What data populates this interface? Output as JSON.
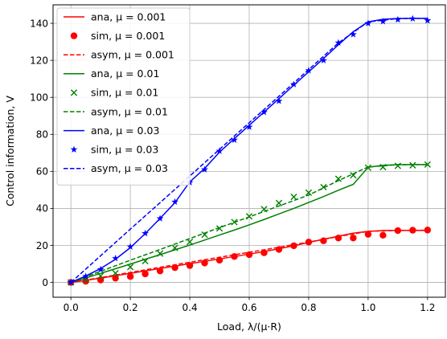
{
  "chart_data": {
    "type": "line",
    "xlabel": "Load, λ/(μ·R)",
    "ylabel": "Control information, V",
    "xlim": [
      -0.06,
      1.26
    ],
    "ylim": [
      -8,
      150
    ],
    "xticks": [
      "0.0",
      "0.2",
      "0.4",
      "0.6",
      "0.8",
      "1.0",
      "1.2"
    ],
    "yticks": [
      "0",
      "20",
      "40",
      "60",
      "80",
      "100",
      "120",
      "140"
    ],
    "grid": true,
    "legend_position": "upper-left",
    "series": [
      {
        "name": "ana, μ = 0.001",
        "style": "line",
        "color": "#ff0000",
        "x": [
          0,
          0.05,
          0.1,
          0.15,
          0.2,
          0.25,
          0.3,
          0.35,
          0.4,
          0.45,
          0.5,
          0.55,
          0.6,
          0.65,
          0.7,
          0.75,
          0.8,
          0.85,
          0.9,
          0.95,
          1.0,
          1.05,
          1.1,
          1.15,
          1.2
        ],
        "y": [
          0,
          1.1,
          2.3,
          3.6,
          4.9,
          6.2,
          7.5,
          8.8,
          10.1,
          11.4,
          12.7,
          14.0,
          15.3,
          16.7,
          18.2,
          19.8,
          21.6,
          23.3,
          25.0,
          26.6,
          27.6,
          28.0,
          28.1,
          28.1,
          28.1
        ]
      },
      {
        "name": "sim, μ = 0.001",
        "style": "circle",
        "color": "#ff0000",
        "x": [
          0,
          0.05,
          0.1,
          0.15,
          0.2,
          0.25,
          0.3,
          0.35,
          0.4,
          0.45,
          0.5,
          0.55,
          0.6,
          0.65,
          0.7,
          0.75,
          0.8,
          0.85,
          0.9,
          0.95,
          1.0,
          1.05,
          1.1,
          1.15,
          1.2
        ],
        "y": [
          0,
          0.6,
          1.3,
          2.3,
          3.2,
          4.6,
          6.2,
          8.0,
          9.1,
          10.5,
          12.0,
          14.0,
          15.0,
          16.0,
          17.8,
          19.8,
          21.8,
          22.5,
          24.0,
          24.0,
          26.0,
          25.5,
          28.0,
          28.2,
          28.3
        ]
      },
      {
        "name": "asym, μ = 0.001",
        "style": "dashed",
        "color": "#ff0000",
        "x": [
          0,
          0.1,
          0.2,
          0.3,
          0.4,
          0.5,
          0.6,
          0.7,
          0.8,
          0.9,
          1.0,
          1.1,
          1.2
        ],
        "y": [
          0,
          2.6,
          5.4,
          8.2,
          10.9,
          13.6,
          16.3,
          19.0,
          21.8,
          24.8,
          27.6,
          28.1,
          28.2
        ]
      },
      {
        "name": "ana, μ = 0.01",
        "style": "line",
        "color": "#008000",
        "x": [
          0,
          0.05,
          0.1,
          0.15,
          0.2,
          0.25,
          0.3,
          0.35,
          0.4,
          0.45,
          0.5,
          0.55,
          0.6,
          0.65,
          0.7,
          0.75,
          0.8,
          0.85,
          0.9,
          0.95,
          1.0,
          1.05,
          1.1,
          1.15,
          1.2
        ],
        "y": [
          0,
          2.4,
          4.9,
          7.4,
          9.9,
          12.5,
          15.0,
          17.6,
          20.2,
          22.9,
          25.6,
          28.3,
          31.1,
          34.0,
          37.0,
          40.0,
          43.2,
          46.4,
          49.8,
          53.0,
          62.2,
          63.3,
          63.6,
          63.7,
          63.7
        ]
      },
      {
        "name": "sim, μ = 0.01",
        "style": "x",
        "color": "#008000",
        "x": [
          0,
          0.05,
          0.1,
          0.15,
          0.2,
          0.25,
          0.3,
          0.35,
          0.4,
          0.45,
          0.5,
          0.55,
          0.6,
          0.65,
          0.7,
          0.75,
          0.8,
          0.85,
          0.9,
          0.95,
          1.0,
          1.05,
          1.1,
          1.15,
          1.2
        ],
        "y": [
          0,
          1.5,
          3.5,
          5.0,
          8.3,
          11.5,
          15.6,
          18.7,
          21.9,
          25.8,
          29.2,
          32.6,
          35.7,
          39.6,
          42.9,
          46.2,
          48.5,
          51.5,
          56.0,
          57.9,
          62.0,
          62.3,
          63.0,
          63.3,
          63.7
        ]
      },
      {
        "name": "asym, μ = 0.01",
        "style": "dashed",
        "color": "#008000",
        "x": [
          0,
          0.1,
          0.2,
          0.3,
          0.4,
          0.5,
          0.6,
          0.7,
          0.8,
          0.9,
          1.0,
          1.1,
          1.2
        ],
        "y": [
          0,
          6.0,
          12.0,
          17.8,
          23.7,
          29.6,
          35.4,
          41.3,
          47.2,
          55.0,
          62.4,
          63.6,
          63.7
        ]
      },
      {
        "name": "ana, μ = 0.03",
        "style": "line",
        "color": "#0000ff",
        "x": [
          0,
          0.05,
          0.1,
          0.15,
          0.2,
          0.25,
          0.3,
          0.35,
          0.4,
          0.45,
          0.5,
          0.55,
          0.6,
          0.65,
          0.7,
          0.75,
          0.8,
          0.85,
          0.9,
          0.95,
          1.0,
          1.05,
          1.1,
          1.15,
          1.2
        ],
        "y": [
          0,
          3.5,
          7.5,
          12.5,
          18.8,
          26.4,
          34.6,
          43.1,
          54.3,
          61.6,
          70.4,
          77.7,
          84.9,
          92.1,
          99.3,
          106.6,
          113.8,
          121.0,
          128.4,
          135.5,
          140.8,
          142.2,
          142.6,
          142.7,
          142.7
        ]
      },
      {
        "name": "sim, μ = 0.03",
        "style": "star",
        "color": "#0000ff",
        "x": [
          0,
          0.05,
          0.1,
          0.15,
          0.2,
          0.25,
          0.3,
          0.35,
          0.4,
          0.45,
          0.5,
          0.55,
          0.6,
          0.65,
          0.7,
          0.75,
          0.8,
          0.85,
          0.9,
          0.95,
          1.0,
          1.05,
          1.1,
          1.15,
          1.2
        ],
        "y": [
          0,
          3.3,
          7.0,
          13.0,
          19.3,
          26.5,
          34.5,
          43.5,
          54.0,
          61.0,
          71.0,
          77.0,
          84.0,
          92.0,
          98.0,
          107.0,
          114.5,
          120.0,
          129.5,
          134.0,
          140.0,
          141.0,
          142.0,
          142.5,
          141.5
        ]
      },
      {
        "name": "asym, μ = 0.03",
        "style": "dashed",
        "color": "#0000ff",
        "x": [
          0,
          0.1,
          0.2,
          0.3,
          0.4,
          0.5,
          0.6,
          0.7,
          0.8,
          0.9,
          1.0,
          1.1,
          1.2
        ],
        "y": [
          0,
          14.4,
          28.8,
          43.1,
          57.5,
          71.9,
          86.3,
          100.6,
          115.0,
          129.4,
          140.8,
          142.6,
          142.7
        ]
      }
    ]
  }
}
